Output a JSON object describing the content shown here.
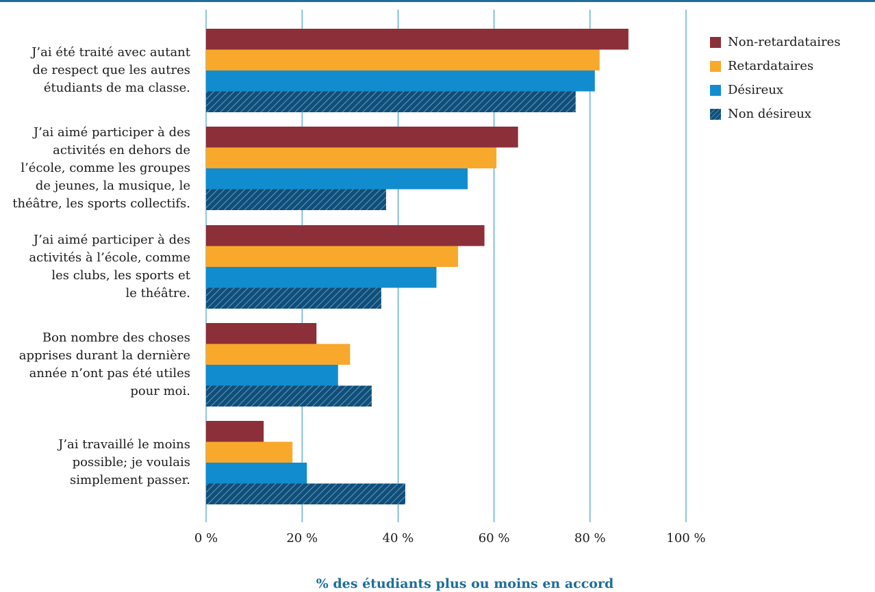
{
  "chart_data": {
    "type": "bar",
    "orientation": "horizontal",
    "categories": [
      "J’ai été traité avec autant de respect que les autres étudiants de ma classe.",
      "J’ai aimé participer à des activités en dehors de l’école, comme les groupes de jeunes, la musique, le théâtre, les sports collectifs.",
      "J’ai aimé participer à des activités à l’école, comme les clubs, les sports et le théâtre.",
      "Bon nombre des choses apprises durant la dernière année n’ont pas été utiles pour moi.",
      "J’ai travaillé le moins possible; je voulais simplement passer."
    ],
    "category_lines": [
      [
        "J’ai été traité avec autant",
        "de respect que les autres",
        "étudiants de ma classe."
      ],
      [
        "J’ai aimé participer à des",
        "activités en dehors de",
        "l’école, comme les groupes",
        "de jeunes, la musique, le",
        "théâtre, les sports collectifs."
      ],
      [
        "J’ai aimé participer à des",
        "activités à l’école, comme",
        "les clubs, les sports et",
        "le théâtre."
      ],
      [
        "Bon nombre des choses",
        "apprises durant la dernière",
        "année n’ont pas été utiles",
        "pour moi."
      ],
      [
        "J’ai travaillé le moins",
        "possible; je voulais",
        "simplement passer."
      ]
    ],
    "series": [
      {
        "name": "Non-retardataires",
        "color": "#8c2f39",
        "pattern": "solid",
        "values": [
          88,
          65,
          58,
          23,
          12
        ]
      },
      {
        "name": "Retardataires",
        "color": "#f8a92c",
        "pattern": "solid",
        "values": [
          82,
          60.5,
          52.5,
          30,
          18
        ]
      },
      {
        "name": "Désireux",
        "color": "#118ccf",
        "pattern": "solid",
        "values": [
          81,
          54.5,
          48,
          27.5,
          21
        ]
      },
      {
        "name": "Non désireux",
        "color": "#0f4f7a",
        "pattern": "hatched",
        "values": [
          77,
          37.5,
          36.5,
          34.5,
          41.5
        ]
      }
    ],
    "xlabel": "% des étudiants plus ou moins en accord",
    "ylabel": "",
    "xlim": [
      0,
      100
    ],
    "xticks": [
      0,
      20,
      40,
      60,
      80,
      100
    ],
    "xtick_labels": [
      "0 %",
      "20 %",
      "40 %",
      "60 %",
      "80 %",
      "100 %"
    ],
    "grid": "vertical",
    "gridline_color": "#1d8fb8",
    "legend_position": "top-right"
  }
}
